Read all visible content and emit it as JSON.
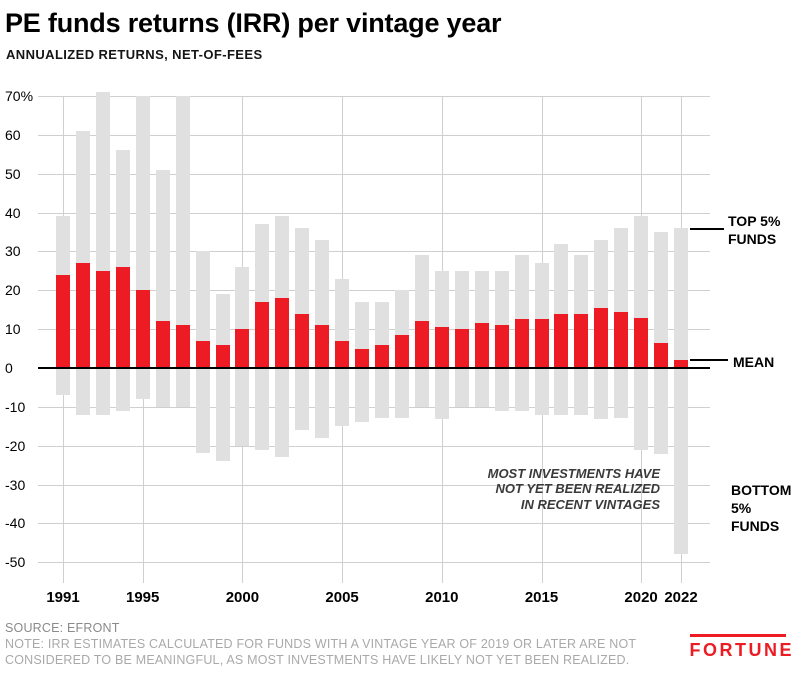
{
  "header": {
    "title": "PE funds returns (IRR) per vintage year",
    "subtitle": "ANNUALIZED RETURNS, NET-OF-FEES"
  },
  "theme": {
    "accent": "#ed1c24",
    "range_gray": "#e0e0e0",
    "grid": "#cfcfcf",
    "note_gray": "#a9a9a9"
  },
  "chart_data": {
    "type": "bar",
    "title": "PE funds returns (IRR) per vintage year",
    "subtitle": "ANNUALIZED RETURNS, NET-OF-FEES",
    "unit": "percent (annualized IRR, net of fees)",
    "x": [
      1991,
      1992,
      1993,
      1994,
      1995,
      1996,
      1997,
      1998,
      1999,
      2000,
      2001,
      2002,
      2003,
      2004,
      2005,
      2006,
      2007,
      2008,
      2009,
      2010,
      2011,
      2012,
      2013,
      2014,
      2015,
      2016,
      2017,
      2018,
      2019,
      2020,
      2021,
      2022
    ],
    "series": [
      {
        "name": "TOP 5% FUNDS",
        "values": [
          39,
          61,
          71,
          56,
          70,
          51,
          70,
          30,
          19,
          26,
          37,
          39,
          36,
          33,
          23,
          17,
          17,
          20,
          29,
          25,
          25,
          25,
          25,
          29,
          27,
          32,
          29,
          33,
          36,
          39,
          35,
          36
        ]
      },
      {
        "name": "MEAN",
        "values": [
          24,
          27,
          25,
          26,
          20,
          12,
          11,
          7,
          6,
          10,
          17,
          18,
          14,
          11,
          7,
          5,
          6,
          8.5,
          12,
          10.5,
          10,
          11.5,
          11,
          12.5,
          12.5,
          14,
          14,
          15.5,
          14.5,
          13,
          6.5,
          2
        ]
      },
      {
        "name": "BOTTOM 5% FUNDS",
        "values": [
          -7,
          -12,
          -12,
          -11,
          -8,
          -10,
          -10,
          -22,
          -24,
          -20,
          -21,
          -23,
          -16,
          -18,
          -15,
          -14,
          -13,
          -13,
          -10,
          -13,
          -10,
          -10,
          -11,
          -11,
          -12,
          -12,
          -12,
          -13,
          -13,
          -21,
          -22,
          -48
        ]
      }
    ],
    "ylim": [
      -50,
      70
    ],
    "ytick_values": [
      70,
      60,
      50,
      40,
      30,
      20,
      10,
      0,
      -10,
      -20,
      -30,
      -40,
      -50
    ],
    "ytick_labels": [
      "70%",
      "60",
      "50",
      "40",
      "30",
      "20",
      "10",
      "0",
      "-10",
      "-20",
      "-30",
      "-40",
      "-50"
    ],
    "xticks": [
      1991,
      1995,
      2000,
      2005,
      2010,
      2015,
      2020,
      2022
    ],
    "xtick_labels": [
      "1991",
      "1995",
      "2000",
      "2005",
      "2010",
      "2015",
      "2020",
      "2022"
    ],
    "grid": true,
    "legend_position": "right",
    "colors": {
      "range": "#e0e0e0",
      "mean": "#ed1c24"
    }
  },
  "side_labels": {
    "top5": [
      "TOP 5%",
      "FUNDS"
    ],
    "mean": "MEAN",
    "bottom5": [
      "BOTTOM",
      "5%",
      "FUNDS"
    ]
  },
  "annotation": {
    "lines": [
      "MOST INVESTMENTS HAVE",
      "NOT YET BEEN REALIZED",
      "IN RECENT VINTAGES"
    ]
  },
  "footer": {
    "source": "SOURCE: EFRONT",
    "note_lines": [
      "NOTE: IRR ESTIMATES CALCULATED FOR FUNDS WITH A VINTAGE YEAR OF 2019 OR LATER ARE NOT",
      "CONSIDERED TO BE MEANINGFUL, AS MOST INVESTMENTS HAVE LIKELY NOT YET BEEN REALIZED."
    ],
    "logo": "FORTUNE"
  }
}
